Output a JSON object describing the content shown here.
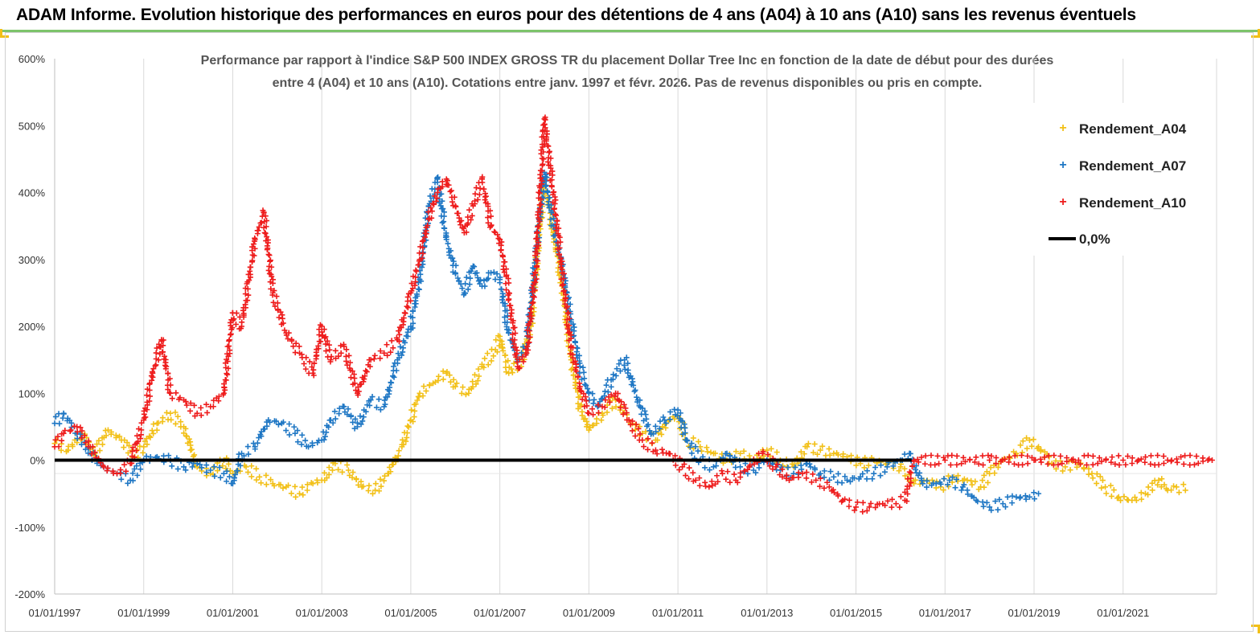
{
  "banner": {
    "title": "ADAM Informe. Evolution historique des performances en euros pour des détentions de 4 ans (A04) à 10 ans (A10) sans les revenus éventuels",
    "accent": "#7dc46b",
    "corner_color": "#f2c018"
  },
  "chart_data": {
    "type": "scatter",
    "title_line1": "Performance par rapport à l'indice S&P 500 INDEX GROSS TR  du placement Dollar Tree Inc en  fonction de la date de début pour des durées",
    "title_line2": "entre 4 (A04) et 10 ans (A10).  Cotations entre janv. 1997 et févr. 2026.  Pas de revenus disponibles ou pris en compte.",
    "y_ticks": [
      "600%",
      "500%",
      "400%",
      "300%",
      "200%",
      "100%",
      "0%",
      "-100%",
      "-200%"
    ],
    "x_ticks": [
      "01/01/1997",
      "01/01/1999",
      "01/01/2001",
      "01/01/2003",
      "01/01/2005",
      "01/01/2007",
      "01/01/2009",
      "01/01/2011",
      "01/01/2013",
      "01/01/2015",
      "01/01/2017",
      "01/01/2019",
      "01/01/2021"
    ],
    "ylim": [
      -200,
      600
    ],
    "xlim": [
      1997.0,
      2023.1
    ],
    "grid": "vertical",
    "legend_position": "top-right",
    "series": [
      {
        "name": "Rendement_A04",
        "color": "#f2c018",
        "points": [
          [
            1997.0,
            25
          ],
          [
            1997.3,
            15
          ],
          [
            1997.6,
            40
          ],
          [
            1997.9,
            10
          ],
          [
            1998.2,
            45
          ],
          [
            1998.5,
            30
          ],
          [
            1998.8,
            5
          ],
          [
            1999.0,
            20
          ],
          [
            1999.3,
            55
          ],
          [
            1999.6,
            70
          ],
          [
            1999.9,
            50
          ],
          [
            2000.2,
            -10
          ],
          [
            2000.5,
            -20
          ],
          [
            2000.8,
            0
          ],
          [
            2001.0,
            -20
          ],
          [
            2001.3,
            -10
          ],
          [
            2001.6,
            -25
          ],
          [
            2001.9,
            -35
          ],
          [
            2002.2,
            -40
          ],
          [
            2002.5,
            -50
          ],
          [
            2002.8,
            -35
          ],
          [
            2003.0,
            -30
          ],
          [
            2003.3,
            -5
          ],
          [
            2003.6,
            -15
          ],
          [
            2003.9,
            -40
          ],
          [
            2004.2,
            -45
          ],
          [
            2004.5,
            -20
          ],
          [
            2004.8,
            20
          ],
          [
            2005.0,
            60
          ],
          [
            2005.2,
            100
          ],
          [
            2005.5,
            115
          ],
          [
            2005.8,
            130
          ],
          [
            2006.0,
            110
          ],
          [
            2006.3,
            100
          ],
          [
            2006.6,
            140
          ],
          [
            2006.9,
            165
          ],
          [
            2007.0,
            185
          ],
          [
            2007.2,
            130
          ],
          [
            2007.5,
            150
          ],
          [
            2007.7,
            200
          ],
          [
            2007.9,
            350
          ],
          [
            2008.0,
            420
          ],
          [
            2008.2,
            340
          ],
          [
            2008.4,
            260
          ],
          [
            2008.6,
            150
          ],
          [
            2008.8,
            80
          ],
          [
            2009.0,
            45
          ],
          [
            2009.3,
            70
          ],
          [
            2009.6,
            90
          ],
          [
            2009.9,
            60
          ],
          [
            2010.2,
            40
          ],
          [
            2010.5,
            30
          ],
          [
            2010.8,
            60
          ],
          [
            2011.0,
            65
          ],
          [
            2011.2,
            30
          ],
          [
            2011.5,
            20
          ],
          [
            2011.8,
            10
          ],
          [
            2012.1,
            0
          ],
          [
            2012.4,
            10
          ],
          [
            2012.7,
            0
          ],
          [
            2013.0,
            15
          ],
          [
            2013.3,
            0
          ],
          [
            2013.6,
            -10
          ],
          [
            2013.9,
            20
          ],
          [
            2014.2,
            15
          ],
          [
            2014.5,
            10
          ],
          [
            2014.8,
            5
          ],
          [
            2015.1,
            -5
          ],
          [
            2015.4,
            0
          ],
          [
            2015.7,
            -5
          ],
          [
            2016.0,
            -10
          ],
          [
            2016.3,
            -35
          ],
          [
            2016.6,
            -30
          ],
          [
            2016.9,
            -40
          ],
          [
            2017.2,
            -25
          ],
          [
            2017.5,
            -30
          ],
          [
            2017.8,
            -40
          ],
          [
            2018.0,
            -20
          ],
          [
            2018.3,
            0
          ],
          [
            2018.6,
            10
          ],
          [
            2018.9,
            30
          ],
          [
            2019.1,
            20
          ],
          [
            2019.4,
            -5
          ],
          [
            2019.7,
            -10
          ],
          [
            2020.0,
            -5
          ],
          [
            2020.3,
            -20
          ],
          [
            2020.6,
            -40
          ],
          [
            2020.9,
            -55
          ],
          [
            2021.2,
            -60
          ],
          [
            2021.5,
            -50
          ],
          [
            2021.8,
            -30
          ],
          [
            2022.0,
            -45
          ],
          [
            2022.2,
            -40
          ],
          [
            2022.4,
            -45
          ]
        ]
      },
      {
        "name": "Rendement_A07",
        "color": "#1f77c4",
        "points": [
          [
            1997.0,
            55
          ],
          [
            1997.2,
            70
          ],
          [
            1997.5,
            40
          ],
          [
            1997.8,
            10
          ],
          [
            1998.1,
            -10
          ],
          [
            1998.4,
            -20
          ],
          [
            1998.7,
            -30
          ],
          [
            1999.0,
            0
          ],
          [
            1999.3,
            5
          ],
          [
            1999.6,
            0
          ],
          [
            1999.9,
            -10
          ],
          [
            2000.2,
            -5
          ],
          [
            2000.5,
            -15
          ],
          [
            2000.8,
            -20
          ],
          [
            2001.0,
            -35
          ],
          [
            2001.2,
            10
          ],
          [
            2001.5,
            20
          ],
          [
            2001.8,
            60
          ],
          [
            2002.1,
            55
          ],
          [
            2002.4,
            40
          ],
          [
            2002.7,
            20
          ],
          [
            2003.0,
            30
          ],
          [
            2003.2,
            60
          ],
          [
            2003.5,
            80
          ],
          [
            2003.8,
            50
          ],
          [
            2004.1,
            90
          ],
          [
            2004.4,
            80
          ],
          [
            2004.7,
            150
          ],
          [
            2005.0,
            200
          ],
          [
            2005.2,
            270
          ],
          [
            2005.4,
            380
          ],
          [
            2005.6,
            420
          ],
          [
            2005.8,
            330
          ],
          [
            2006.0,
            280
          ],
          [
            2006.2,
            250
          ],
          [
            2006.4,
            290
          ],
          [
            2006.6,
            260
          ],
          [
            2006.8,
            280
          ],
          [
            2007.0,
            270
          ],
          [
            2007.2,
            190
          ],
          [
            2007.4,
            150
          ],
          [
            2007.6,
            170
          ],
          [
            2007.8,
            300
          ],
          [
            2008.0,
            430
          ],
          [
            2008.2,
            350
          ],
          [
            2008.4,
            290
          ],
          [
            2008.6,
            210
          ],
          [
            2008.8,
            140
          ],
          [
            2009.0,
            100
          ],
          [
            2009.2,
            80
          ],
          [
            2009.5,
            120
          ],
          [
            2009.8,
            150
          ],
          [
            2010.1,
            90
          ],
          [
            2010.4,
            40
          ],
          [
            2010.7,
            60
          ],
          [
            2011.0,
            75
          ],
          [
            2011.2,
            30
          ],
          [
            2011.5,
            0
          ],
          [
            2011.8,
            -10
          ],
          [
            2012.1,
            10
          ],
          [
            2012.4,
            -10
          ],
          [
            2012.7,
            -15
          ],
          [
            2013.0,
            0
          ],
          [
            2013.3,
            -15
          ],
          [
            2013.6,
            -20
          ],
          [
            2013.9,
            -5
          ],
          [
            2014.2,
            -20
          ],
          [
            2014.5,
            -25
          ],
          [
            2014.8,
            -30
          ],
          [
            2015.1,
            -25
          ],
          [
            2015.4,
            -20
          ],
          [
            2015.7,
            -10
          ],
          [
            2016.0,
            0
          ],
          [
            2016.2,
            10
          ],
          [
            2016.5,
            -35
          ],
          [
            2016.8,
            -35
          ],
          [
            2017.1,
            -30
          ],
          [
            2017.4,
            -40
          ],
          [
            2017.7,
            -60
          ],
          [
            2018.0,
            -70
          ],
          [
            2018.3,
            -65
          ],
          [
            2018.6,
            -55
          ],
          [
            2018.9,
            -55
          ],
          [
            2019.1,
            -50
          ]
        ]
      },
      {
        "name": "Rendement_A10",
        "color": "#ee1c1c",
        "points": [
          [
            1997.0,
            20
          ],
          [
            1997.2,
            40
          ],
          [
            1997.5,
            50
          ],
          [
            1997.8,
            20
          ],
          [
            1998.1,
            -10
          ],
          [
            1998.4,
            -20
          ],
          [
            1998.7,
            -5
          ],
          [
            1999.0,
            60
          ],
          [
            1999.2,
            130
          ],
          [
            1999.4,
            180
          ],
          [
            1999.6,
            100
          ],
          [
            1999.9,
            90
          ],
          [
            2000.2,
            70
          ],
          [
            2000.5,
            80
          ],
          [
            2000.8,
            100
          ],
          [
            2001.0,
            220
          ],
          [
            2001.2,
            200
          ],
          [
            2001.5,
            330
          ],
          [
            2001.7,
            370
          ],
          [
            2001.9,
            250
          ],
          [
            2002.2,
            190
          ],
          [
            2002.5,
            160
          ],
          [
            2002.8,
            130
          ],
          [
            2003.0,
            200
          ],
          [
            2003.2,
            150
          ],
          [
            2003.5,
            170
          ],
          [
            2003.8,
            100
          ],
          [
            2004.1,
            150
          ],
          [
            2004.4,
            160
          ],
          [
            2004.7,
            180
          ],
          [
            2005.0,
            250
          ],
          [
            2005.2,
            300
          ],
          [
            2005.4,
            360
          ],
          [
            2005.6,
            400
          ],
          [
            2005.8,
            420
          ],
          [
            2006.0,
            380
          ],
          [
            2006.2,
            340
          ],
          [
            2006.4,
            380
          ],
          [
            2006.6,
            420
          ],
          [
            2006.8,
            350
          ],
          [
            2007.0,
            330
          ],
          [
            2007.2,
            250
          ],
          [
            2007.4,
            140
          ],
          [
            2007.6,
            160
          ],
          [
            2007.8,
            280
          ],
          [
            2008.0,
            510
          ],
          [
            2008.2,
            400
          ],
          [
            2008.4,
            280
          ],
          [
            2008.6,
            170
          ],
          [
            2008.8,
            110
          ],
          [
            2009.0,
            70
          ],
          [
            2009.3,
            80
          ],
          [
            2009.6,
            100
          ],
          [
            2009.9,
            60
          ],
          [
            2010.2,
            30
          ],
          [
            2010.5,
            15
          ],
          [
            2010.8,
            10
          ],
          [
            2011.1,
            -10
          ],
          [
            2011.4,
            -30
          ],
          [
            2011.7,
            -40
          ],
          [
            2012.0,
            -20
          ],
          [
            2012.3,
            -30
          ],
          [
            2012.6,
            -10
          ],
          [
            2012.9,
            10
          ],
          [
            2013.2,
            -10
          ],
          [
            2013.5,
            -30
          ],
          [
            2013.8,
            -20
          ],
          [
            2014.1,
            -30
          ],
          [
            2014.4,
            -40
          ],
          [
            2014.7,
            -60
          ],
          [
            2015.0,
            -70
          ],
          [
            2015.3,
            -70
          ],
          [
            2015.6,
            -65
          ],
          [
            2015.9,
            -65
          ],
          [
            2016.1,
            -60
          ],
          [
            2016.3,
            0
          ],
          [
            2017.0,
            0
          ],
          [
            2018.0,
            0
          ],
          [
            2019.0,
            0
          ],
          [
            2020.0,
            0
          ],
          [
            2021.0,
            0
          ],
          [
            2022.0,
            0
          ],
          [
            2023.0,
            0
          ]
        ]
      }
    ],
    "reference_line": {
      "name": "0,0%",
      "value": 0,
      "color": "#000000"
    }
  }
}
